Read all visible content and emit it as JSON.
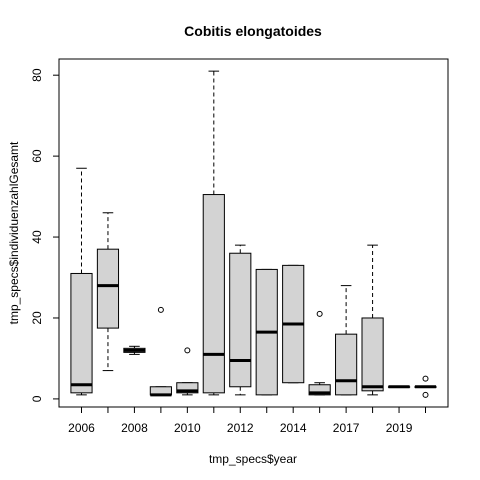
{
  "chart_data": {
    "type": "boxplot",
    "title": "Cobitis elongatoides",
    "xlabel": "tmp_specs$year",
    "ylabel": "tmp_specs$individuenzahlGesamt",
    "ylim": [
      -2,
      84
    ],
    "y_ticks": [
      0,
      20,
      40,
      60,
      80
    ],
    "x_tick_labels": [
      "2006",
      "2008",
      "2010",
      "2012",
      "2014",
      "2017",
      "2019"
    ],
    "grid": false,
    "box_fill": "#d3d3d3",
    "boxes": [
      {
        "year": "2006",
        "lower_whisker": 1,
        "q1": 1.5,
        "median": 3.5,
        "q3": 31,
        "upper_whisker": 57,
        "outliers": []
      },
      {
        "year": "2007",
        "lower_whisker": 7,
        "q1": 17.5,
        "median": 28,
        "q3": 37,
        "upper_whisker": 46,
        "outliers": []
      },
      {
        "year": "2008",
        "lower_whisker": 11,
        "q1": 11.5,
        "median": 12,
        "q3": 12.5,
        "upper_whisker": 13,
        "outliers": []
      },
      {
        "year": "2009",
        "lower_whisker": 1,
        "q1": 1,
        "median": 1,
        "q3": 3,
        "upper_whisker": 3,
        "outliers": [
          22
        ]
      },
      {
        "year": "2010",
        "lower_whisker": 1,
        "q1": 1.5,
        "median": 2,
        "q3": 4,
        "upper_whisker": 4,
        "outliers": [
          12
        ]
      },
      {
        "year": "2011",
        "lower_whisker": 1,
        "q1": 1.5,
        "median": 11,
        "q3": 50.5,
        "upper_whisker": 81,
        "outliers": []
      },
      {
        "year": "2012",
        "lower_whisker": 1,
        "q1": 3,
        "median": 9.5,
        "q3": 36,
        "upper_whisker": 38,
        "outliers": []
      },
      {
        "year": "2013",
        "lower_whisker": 1,
        "q1": 1,
        "median": 16.5,
        "q3": 32,
        "upper_whisker": 32,
        "outliers": []
      },
      {
        "year": "2014",
        "lower_whisker": 4,
        "q1": 4,
        "median": 18.5,
        "q3": 33,
        "upper_whisker": 33,
        "outliers": []
      },
      {
        "year": "2016",
        "lower_whisker": 1,
        "q1": 1,
        "median": 1.5,
        "q3": 3.5,
        "upper_whisker": 4,
        "outliers": [
          21
        ]
      },
      {
        "year": "2017",
        "lower_whisker": 1,
        "q1": 1,
        "median": 4.5,
        "q3": 16,
        "upper_whisker": 28,
        "outliers": []
      },
      {
        "year": "2018",
        "lower_whisker": 1,
        "q1": 2,
        "median": 3,
        "q3": 20,
        "upper_whisker": 38,
        "outliers": []
      },
      {
        "year": "2019",
        "lower_whisker": 3,
        "q1": 3,
        "median": 3,
        "q3": 3,
        "upper_whisker": 3,
        "outliers": []
      },
      {
        "year": "2020",
        "lower_whisker": 3,
        "q1": 3,
        "median": 3,
        "q3": 3,
        "upper_whisker": 3,
        "outliers": [
          1,
          5
        ]
      }
    ]
  }
}
